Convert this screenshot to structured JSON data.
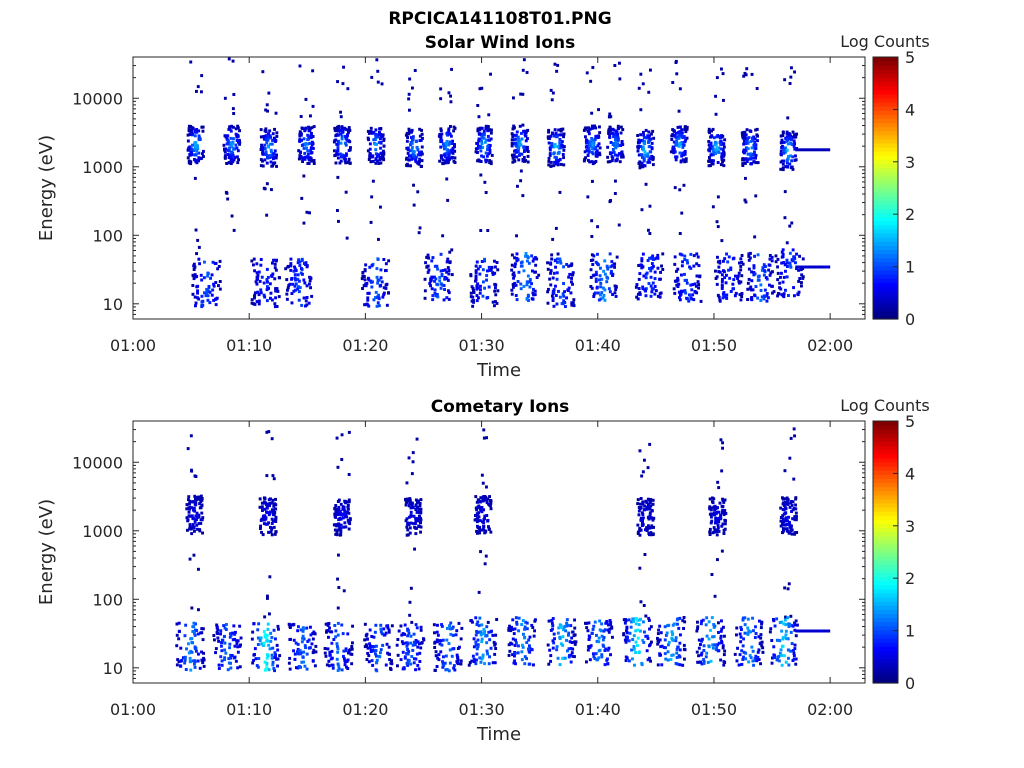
{
  "figure": {
    "title": "RPCICA141108T01.PNG"
  },
  "colors": {
    "colormap": "jet",
    "axis": "#262626",
    "background": "#ffffff"
  },
  "chart_data": [
    {
      "type": "heatmap",
      "title": "Solar Wind Ions",
      "xlabel": "Time",
      "ylabel": "Energy (eV)",
      "xlim_minutes": [
        0,
        63
      ],
      "ylim": [
        6,
        40000
      ],
      "yscale": "log",
      "xticks": [
        "01:00",
        "01:10",
        "01:20",
        "01:30",
        "01:40",
        "01:50",
        "02:00"
      ],
      "xtick_minutes": [
        0,
        10,
        20,
        30,
        40,
        50,
        60
      ],
      "yticks": [
        "10",
        "100",
        "1000",
        "10000"
      ],
      "ytick_values": [
        10,
        100,
        1000,
        10000
      ],
      "colorbar": {
        "label": "Log Counts",
        "range": [
          0,
          5
        ],
        "ticks": [
          "0",
          "1",
          "2",
          "3",
          "4",
          "5"
        ]
      },
      "blobs": [
        [
          5.3,
          2200,
          1.4
        ],
        [
          8.4,
          2200,
          1.2
        ],
        [
          11.6,
          2000,
          1.3
        ],
        [
          14.8,
          2200,
          1.1
        ],
        [
          17.9,
          2200,
          1.3
        ],
        [
          20.8,
          2200,
          1.2
        ],
        [
          24.1,
          2000,
          1.3
        ],
        [
          26.9,
          2200,
          1.2
        ],
        [
          30.1,
          2200,
          1.4
        ],
        [
          33.2,
          2300,
          1.3
        ],
        [
          36.3,
          2000,
          1.5
        ],
        [
          39.4,
          2200,
          1.2
        ],
        [
          41.4,
          2200,
          1.1
        ],
        [
          44.0,
          1900,
          1.6
        ],
        [
          46.9,
          2200,
          1.3
        ],
        [
          50.1,
          2000,
          1.4
        ],
        [
          53.0,
          2000,
          1.3
        ],
        [
          56.3,
          1800,
          1.6
        ]
      ],
      "low_clusters": [
        [
          6.2,
          25,
          0.9
        ],
        [
          11.3,
          25,
          0.7
        ],
        [
          14.2,
          25,
          0.8
        ],
        [
          20.8,
          25,
          0.9
        ],
        [
          26.2,
          30,
          0.9
        ],
        [
          30.1,
          25,
          0.8
        ],
        [
          33.6,
          30,
          1.2
        ],
        [
          36.7,
          25,
          0.9
        ],
        [
          40.4,
          30,
          1.2
        ],
        [
          44.3,
          30,
          0.8
        ],
        [
          47.6,
          30,
          0.8
        ],
        [
          51.2,
          30,
          0.7
        ],
        [
          53.9,
          30,
          1.0
        ],
        [
          56.4,
          35,
          0.8
        ]
      ],
      "flat_lines": [
        {
          "from_minute": 57.0,
          "to_minute": 60.0,
          "energy": 1800,
          "log_counts": 0.3
        },
        {
          "from_minute": 57.0,
          "to_minute": 60.0,
          "energy": 35,
          "log_counts": 0.4
        }
      ]
    },
    {
      "type": "heatmap",
      "title": "Cometary Ions",
      "xlabel": "Time",
      "ylabel": "Energy (eV)",
      "xlim_minutes": [
        0,
        63
      ],
      "ylim": [
        6,
        40000
      ],
      "yscale": "log",
      "xticks": [
        "01:00",
        "01:10",
        "01:20",
        "01:30",
        "01:40",
        "01:50",
        "02:00"
      ],
      "xtick_minutes": [
        0,
        10,
        20,
        30,
        40,
        50,
        60
      ],
      "yticks": [
        "10",
        "100",
        "1000",
        "10000"
      ],
      "ytick_values": [
        10,
        100,
        1000,
        10000
      ],
      "colorbar": {
        "label": "Log Counts",
        "range": [
          0,
          5
        ],
        "ticks": [
          "0",
          "1",
          "2",
          "3",
          "4",
          "5"
        ]
      },
      "blobs": [
        [
          5.2,
          1800,
          0.3
        ],
        [
          11.5,
          1700,
          0.4
        ],
        [
          17.9,
          1700,
          0.4
        ],
        [
          24.0,
          1700,
          0.3
        ],
        [
          30.0,
          1800,
          0.3
        ],
        [
          44.0,
          1700,
          0.3
        ],
        [
          50.2,
          1700,
          0.3
        ],
        [
          56.3,
          1700,
          0.4
        ]
      ],
      "low_clusters": [
        [
          4.8,
          25,
          1.2
        ],
        [
          8.0,
          25,
          1.0
        ],
        [
          11.3,
          25,
          1.8
        ],
        [
          14.5,
          25,
          1.0
        ],
        [
          17.6,
          25,
          1.0
        ],
        [
          21.0,
          25,
          1.0
        ],
        [
          23.8,
          25,
          0.9
        ],
        [
          27.0,
          25,
          1.1
        ],
        [
          30.0,
          30,
          1.3
        ],
        [
          33.4,
          30,
          1.2
        ],
        [
          36.8,
          30,
          1.5
        ],
        [
          40.0,
          30,
          1.2
        ],
        [
          43.3,
          30,
          1.7
        ],
        [
          46.2,
          30,
          1.4
        ],
        [
          49.6,
          30,
          1.4
        ],
        [
          52.9,
          30,
          1.3
        ],
        [
          55.9,
          30,
          1.6
        ]
      ],
      "flat_lines": [
        {
          "from_minute": 57.0,
          "to_minute": 60.0,
          "energy": 35,
          "log_counts": 0.4
        }
      ]
    }
  ]
}
